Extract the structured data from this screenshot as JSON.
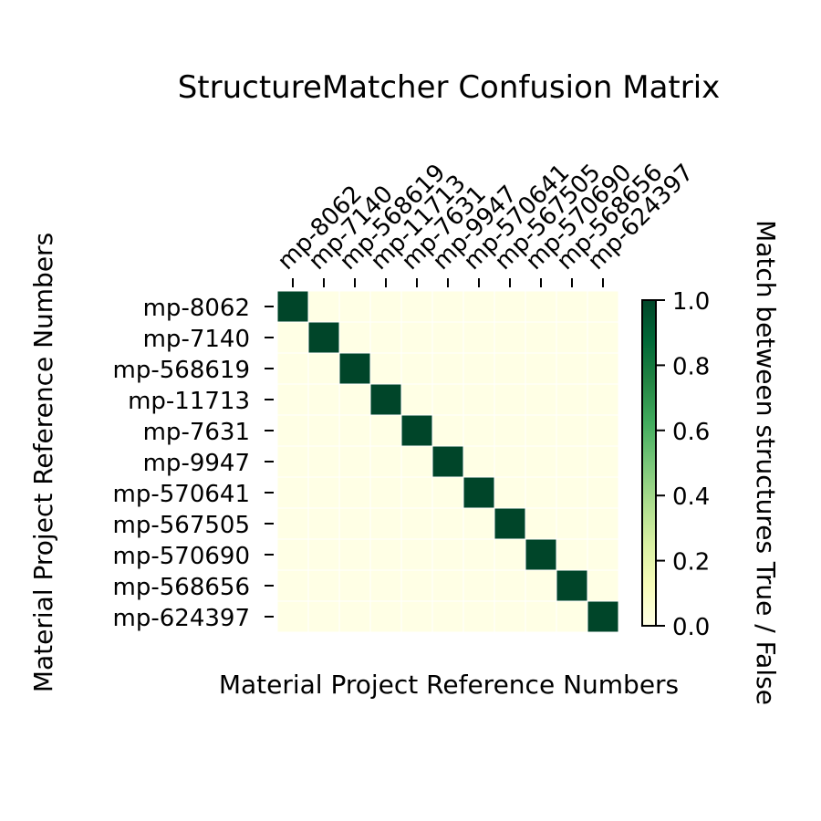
{
  "chart_data": {
    "type": "heatmap",
    "title": "StructureMatcher Confusion Matrix",
    "xlabel": "Material Project Reference Numbers",
    "ylabel": "Material Project Reference Numbers",
    "colorbar_label": "Match between structures True / False",
    "x_categories": [
      "mp-8062",
      "mp-7140",
      "mp-568619",
      "mp-11713",
      "mp-7631",
      "mp-9947",
      "mp-570641",
      "mp-567505",
      "mp-570690",
      "mp-568656",
      "mp-624397"
    ],
    "y_categories": [
      "mp-8062",
      "mp-7140",
      "mp-568619",
      "mp-11713",
      "mp-7631",
      "mp-9947",
      "mp-570641",
      "mp-567505",
      "mp-570690",
      "mp-568656",
      "mp-624397"
    ],
    "values": [
      [
        1,
        0,
        0,
        0,
        0,
        0,
        0,
        0,
        0,
        0,
        0
      ],
      [
        0,
        1,
        0,
        0,
        0,
        0,
        0,
        0,
        0,
        0,
        0
      ],
      [
        0,
        0,
        1,
        0,
        0,
        0,
        0,
        0,
        0,
        0,
        0
      ],
      [
        0,
        0,
        0,
        1,
        0,
        0,
        0,
        0,
        0,
        0,
        0
      ],
      [
        0,
        0,
        0,
        0,
        1,
        0,
        0,
        0,
        0,
        0,
        0
      ],
      [
        0,
        0,
        0,
        0,
        0,
        1,
        0,
        0,
        0,
        0,
        0
      ],
      [
        0,
        0,
        0,
        0,
        0,
        0,
        1,
        0,
        0,
        0,
        0
      ],
      [
        0,
        0,
        0,
        0,
        0,
        0,
        0,
        1,
        0,
        0,
        0
      ],
      [
        0,
        0,
        0,
        0,
        0,
        0,
        0,
        0,
        1,
        0,
        0
      ],
      [
        0,
        0,
        0,
        0,
        0,
        0,
        0,
        0,
        0,
        1,
        0
      ],
      [
        0,
        0,
        0,
        0,
        0,
        0,
        0,
        0,
        0,
        0,
        1
      ]
    ],
    "colorbar_range": [
      0.0,
      1.0
    ],
    "colorbar_ticks": [
      "0.0",
      "0.2",
      "0.4",
      "0.6",
      "0.8",
      "1.0"
    ],
    "colormap": "YlGn",
    "colormap_stops": [
      "#ffffe5",
      "#f7fcb9",
      "#d9f0a3",
      "#addd8e",
      "#78c679",
      "#41ab5d",
      "#238443",
      "#006837",
      "#004529"
    ],
    "cell_border_color": "#ffffff"
  }
}
